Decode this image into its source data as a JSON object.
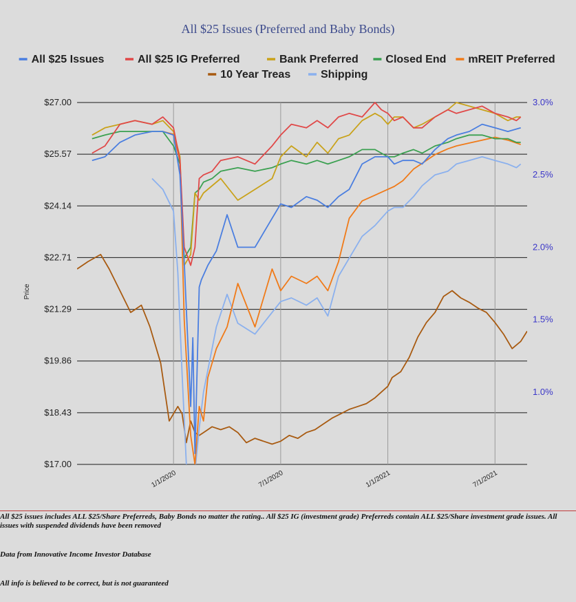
{
  "chart_data": {
    "type": "line",
    "title": "All $25 Issues (Preferred and Baby Bonds)",
    "ylabel": "Price",
    "y_ticks": [
      "$17.00",
      "$18.43",
      "$19.86",
      "$21.29",
      "$22.71",
      "$24.14",
      "$25.57",
      "$27.00"
    ],
    "ylim": [
      17.0,
      27.0
    ],
    "y2_ticks": [
      "1.0%",
      "1.5%",
      "2.0%",
      "2.5%",
      "3.0%"
    ],
    "y2lim": [
      0.5,
      3.0
    ],
    "x_ticks": [
      "1/1/2020",
      "7/1/2020",
      "1/1/2021",
      "7/1/2021"
    ],
    "xlim": [
      -0.45,
      1.65
    ],
    "grid": "horizontal lines at each price tick and vertical lines at each date tick",
    "legend_position": "top",
    "colors": {
      "All $25 Issues": "#4a7ee0",
      "All $25 IG Preferred": "#e04848",
      "Bank Preferred": "#c9a21a",
      "Closed End": "#3aa050",
      "mREIT Preferred": "#f07a18",
      "10 Year Treas": "#a85a10",
      "Shipping": "#8ab0ee"
    },
    "series": [
      {
        "name": "All $25 Issues",
        "axis": "left",
        "x": [
          -0.38,
          -0.32,
          -0.25,
          -0.18,
          -0.1,
          -0.05,
          0.0,
          0.03,
          0.05,
          0.08,
          0.09,
          0.1,
          0.12,
          0.13,
          0.16,
          0.2,
          0.25,
          0.3,
          0.38,
          0.46,
          0.5,
          0.55,
          0.62,
          0.67,
          0.72,
          0.77,
          0.82,
          0.88,
          0.94,
          0.98,
          1.0,
          1.03,
          1.07,
          1.12,
          1.16,
          1.22,
          1.28,
          1.32,
          1.38,
          1.44,
          1.5,
          1.56,
          1.62
        ],
        "values": [
          25.4,
          25.5,
          25.9,
          26.1,
          26.2,
          26.2,
          26.1,
          25.0,
          22.6,
          18.6,
          20.5,
          17.3,
          21.9,
          22.1,
          22.5,
          22.9,
          23.9,
          23.0,
          23.0,
          23.8,
          24.2,
          24.1,
          24.4,
          24.3,
          24.1,
          24.4,
          24.6,
          25.3,
          25.5,
          25.5,
          25.5,
          25.3,
          25.4,
          25.4,
          25.3,
          25.7,
          26.0,
          26.1,
          26.2,
          26.4,
          26.3,
          26.2,
          26.3
        ]
      },
      {
        "name": "All $25 IG Preferred",
        "axis": "left",
        "x": [
          -0.38,
          -0.32,
          -0.25,
          -0.18,
          -0.1,
          -0.05,
          0.0,
          0.03,
          0.05,
          0.08,
          0.1,
          0.12,
          0.14,
          0.18,
          0.22,
          0.3,
          0.38,
          0.46,
          0.5,
          0.55,
          0.62,
          0.67,
          0.72,
          0.77,
          0.82,
          0.88,
          0.94,
          0.97,
          1.0,
          1.03,
          1.07,
          1.12,
          1.16,
          1.22,
          1.28,
          1.32,
          1.38,
          1.44,
          1.5,
          1.56,
          1.6,
          1.62
        ],
        "values": [
          25.6,
          25.8,
          26.4,
          26.5,
          26.4,
          26.6,
          26.3,
          25.4,
          23.0,
          22.5,
          23.0,
          24.9,
          25.0,
          25.1,
          25.4,
          25.5,
          25.3,
          25.8,
          26.1,
          26.4,
          26.3,
          26.5,
          26.3,
          26.6,
          26.7,
          26.6,
          27.0,
          26.8,
          26.7,
          26.5,
          26.6,
          26.3,
          26.3,
          26.6,
          26.8,
          26.7,
          26.8,
          26.9,
          26.7,
          26.6,
          26.5,
          26.6
        ]
      },
      {
        "name": "Bank Preferred",
        "axis": "left",
        "x": [
          -0.38,
          -0.32,
          -0.25,
          -0.18,
          -0.1,
          -0.05,
          0.0,
          0.03,
          0.05,
          0.08,
          0.1,
          0.12,
          0.14,
          0.18,
          0.22,
          0.3,
          0.38,
          0.46,
          0.5,
          0.55,
          0.62,
          0.67,
          0.72,
          0.77,
          0.82,
          0.88,
          0.94,
          0.97,
          1.0,
          1.03,
          1.07,
          1.12,
          1.16,
          1.22,
          1.28,
          1.32,
          1.38,
          1.44,
          1.5,
          1.56,
          1.6,
          1.62
        ],
        "values": [
          26.1,
          26.3,
          26.4,
          26.5,
          26.4,
          26.5,
          26.2,
          25.5,
          22.5,
          22.8,
          24.5,
          24.3,
          24.5,
          24.7,
          24.9,
          24.3,
          24.6,
          24.9,
          25.5,
          25.8,
          25.5,
          25.9,
          25.6,
          26.0,
          26.1,
          26.5,
          26.7,
          26.6,
          26.4,
          26.6,
          26.6,
          26.3,
          26.4,
          26.6,
          26.8,
          27.0,
          26.9,
          26.8,
          26.7,
          26.5,
          26.6,
          26.6
        ]
      },
      {
        "name": "Closed End",
        "axis": "left",
        "x": [
          -0.38,
          -0.32,
          -0.25,
          -0.18,
          -0.1,
          -0.05,
          0.0,
          0.03,
          0.05,
          0.08,
          0.1,
          0.12,
          0.14,
          0.18,
          0.22,
          0.3,
          0.38,
          0.46,
          0.5,
          0.55,
          0.62,
          0.67,
          0.72,
          0.77,
          0.82,
          0.88,
          0.94,
          0.97,
          1.0,
          1.03,
          1.07,
          1.12,
          1.16,
          1.22,
          1.28,
          1.32,
          1.38,
          1.44,
          1.5,
          1.56,
          1.6,
          1.62
        ],
        "values": [
          26.0,
          26.1,
          26.2,
          26.2,
          26.2,
          26.2,
          25.8,
          25.3,
          22.7,
          23.0,
          24.5,
          24.6,
          24.8,
          24.9,
          25.1,
          25.2,
          25.1,
          25.2,
          25.3,
          25.4,
          25.3,
          25.4,
          25.3,
          25.4,
          25.5,
          25.7,
          25.7,
          25.6,
          25.5,
          25.5,
          25.6,
          25.7,
          25.6,
          25.8,
          25.9,
          26.0,
          26.1,
          26.1,
          26.0,
          26.0,
          25.9,
          25.9
        ]
      },
      {
        "name": "mREIT Preferred",
        "axis": "right",
        "x": [
          -0.05,
          0.0,
          0.03,
          0.05,
          0.08,
          0.1,
          0.12,
          0.14,
          0.16,
          0.2,
          0.25,
          0.3,
          0.38,
          0.46,
          0.5,
          0.55,
          0.62,
          0.67,
          0.72,
          0.77,
          0.82,
          0.88,
          0.94,
          0.97,
          1.0,
          1.03,
          1.07,
          1.12,
          1.16,
          1.22,
          1.28,
          1.32,
          1.38,
          1.44,
          1.5,
          1.56,
          1.6,
          1.62
        ],
        "values": [
          2.8,
          2.78,
          2.6,
          1.5,
          0.7,
          0.5,
          0.9,
          0.8,
          1.1,
          1.3,
          1.45,
          1.75,
          1.45,
          1.85,
          1.7,
          1.8,
          1.75,
          1.8,
          1.7,
          1.9,
          2.2,
          2.32,
          2.36,
          2.38,
          2.4,
          2.42,
          2.46,
          2.54,
          2.58,
          2.64,
          2.68,
          2.7,
          2.72,
          2.74,
          2.76,
          2.74,
          2.72,
          2.71
        ]
      },
      {
        "name": "10 Year Treas",
        "axis": "right",
        "x": [
          -0.45,
          -0.4,
          -0.34,
          -0.3,
          -0.25,
          -0.2,
          -0.15,
          -0.11,
          -0.06,
          -0.02,
          0.02,
          0.04,
          0.06,
          0.08,
          0.1,
          0.12,
          0.14,
          0.16,
          0.18,
          0.22,
          0.26,
          0.3,
          0.34,
          0.38,
          0.42,
          0.46,
          0.5,
          0.54,
          0.58,
          0.62,
          0.66,
          0.7,
          0.74,
          0.78,
          0.82,
          0.86,
          0.9,
          0.94,
          0.97,
          1.0,
          1.02,
          1.06,
          1.1,
          1.14,
          1.18,
          1.22,
          1.26,
          1.3,
          1.34,
          1.38,
          1.42,
          1.46,
          1.5,
          1.54,
          1.58,
          1.62,
          1.65
        ],
        "values": [
          1.85,
          1.9,
          1.95,
          1.85,
          1.7,
          1.55,
          1.6,
          1.45,
          1.2,
          0.8,
          0.9,
          0.85,
          0.65,
          0.8,
          0.72,
          0.7,
          0.72,
          0.74,
          0.76,
          0.74,
          0.76,
          0.72,
          0.65,
          0.68,
          0.66,
          0.64,
          0.66,
          0.7,
          0.68,
          0.72,
          0.74,
          0.78,
          0.82,
          0.85,
          0.88,
          0.9,
          0.92,
          0.96,
          1.0,
          1.04,
          1.1,
          1.14,
          1.24,
          1.38,
          1.48,
          1.55,
          1.66,
          1.7,
          1.65,
          1.62,
          1.58,
          1.55,
          1.48,
          1.4,
          1.3,
          1.35,
          1.42
        ]
      },
      {
        "name": "Shipping",
        "axis": "left",
        "x": [
          -0.1,
          -0.05,
          0.0,
          0.02,
          0.04,
          0.06,
          0.08,
          0.1,
          0.12,
          0.14,
          0.16,
          0.2,
          0.25,
          0.3,
          0.38,
          0.46,
          0.5,
          0.55,
          0.62,
          0.67,
          0.72,
          0.77,
          0.82,
          0.88,
          0.94,
          0.97,
          1.0,
          1.03,
          1.07,
          1.12,
          1.16,
          1.22,
          1.28,
          1.32,
          1.38,
          1.44,
          1.5,
          1.56,
          1.6,
          1.62
        ],
        "values": [
          24.9,
          24.6,
          24.0,
          22.3,
          19.5,
          17.0,
          16.8,
          16.8,
          18.0,
          19.0,
          19.6,
          20.8,
          21.7,
          20.9,
          20.6,
          21.2,
          21.5,
          21.6,
          21.4,
          21.6,
          21.1,
          22.2,
          22.7,
          23.3,
          23.6,
          23.8,
          24.0,
          24.1,
          24.1,
          24.4,
          24.7,
          25.0,
          25.1,
          25.3,
          25.4,
          25.5,
          25.4,
          25.3,
          25.2,
          25.3
        ]
      }
    ]
  },
  "notes": {
    "line1": "All $25 issues includes ALL $25/Share Preferreds, Baby Bonds no matter the rating..  All $25 IG (investment grade) Preferreds contain ALL $25/Share investment grade issues.  All issues with suspended dividends have been removed",
    "line2": "Data from Innovative Income Investor Database",
    "line3": "All info is believed to be correct, but is not guaranteed"
  }
}
